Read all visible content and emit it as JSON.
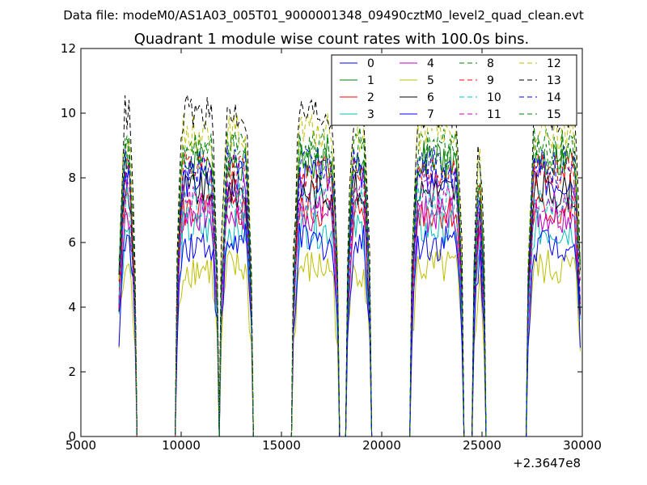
{
  "header": {
    "data_file": "Data file: modeM0/AS1A03_005T01_9000001348_09490cztM0_level2_quad_clean.evt"
  },
  "chart_data": {
    "type": "line",
    "title": "Quadrant 1 module wise count rates with 100.0s bins.",
    "xlabel": "",
    "ylabel": "",
    "x_offset_label": "+2.3647e8",
    "xlim": [
      5000,
      30000
    ],
    "ylim": [
      0,
      12
    ],
    "x_ticks": [
      5000,
      10000,
      15000,
      20000,
      25000,
      30000
    ],
    "x_tick_labels": [
      "5000",
      "10000",
      "15000",
      "20000",
      "25000",
      "30000"
    ],
    "y_ticks": [
      0,
      2,
      4,
      6,
      8,
      10,
      12
    ],
    "y_tick_labels": [
      "0",
      "2",
      "4",
      "6",
      "8",
      "10",
      "12"
    ],
    "grid": false,
    "legend_position": "top-right",
    "segments": [
      [
        6900,
        7700
      ],
      [
        9800,
        11800
      ],
      [
        12000,
        13500
      ],
      [
        15600,
        17800
      ],
      [
        18300,
        19400
      ],
      [
        21500,
        24000
      ],
      [
        24600,
        25100
      ],
      [
        27300,
        29900
      ]
    ],
    "series": [
      {
        "name": "0",
        "color": "#0000ff",
        "dash": "solid",
        "level": 8.0
      },
      {
        "name": "1",
        "color": "#008000",
        "dash": "solid",
        "level": 8.5
      },
      {
        "name": "2",
        "color": "#ff0000",
        "dash": "solid",
        "level": 7.0
      },
      {
        "name": "3",
        "color": "#00bfbf",
        "dash": "solid",
        "level": 6.4
      },
      {
        "name": "4",
        "color": "#bf00bf",
        "dash": "solid",
        "level": 6.9
      },
      {
        "name": "5",
        "color": "#bfbf00",
        "dash": "solid",
        "level": 5.2
      },
      {
        "name": "6",
        "color": "#000000",
        "dash": "solid",
        "level": 7.6
      },
      {
        "name": "7",
        "color": "#0000ff",
        "dash": "solid",
        "level": 6.0
      },
      {
        "name": "8",
        "color": "#008000",
        "dash": "dashed",
        "level": 9.0
      },
      {
        "name": "9",
        "color": "#ff0000",
        "dash": "dashed",
        "level": 8.2
      },
      {
        "name": "10",
        "color": "#00bfbf",
        "dash": "dashed",
        "level": 7.3
      },
      {
        "name": "11",
        "color": "#bf00bf",
        "dash": "dashed",
        "level": 7.4
      },
      {
        "name": "12",
        "color": "#bfbf00",
        "dash": "dashed",
        "level": 9.4
      },
      {
        "name": "13",
        "color": "#000000",
        "dash": "dashed",
        "level": 10.0
      },
      {
        "name": "14",
        "color": "#0000ff",
        "dash": "dashed",
        "level": 8.4
      },
      {
        "name": "15",
        "color": "#008000",
        "dash": "dashed",
        "level": 8.8
      }
    ]
  }
}
